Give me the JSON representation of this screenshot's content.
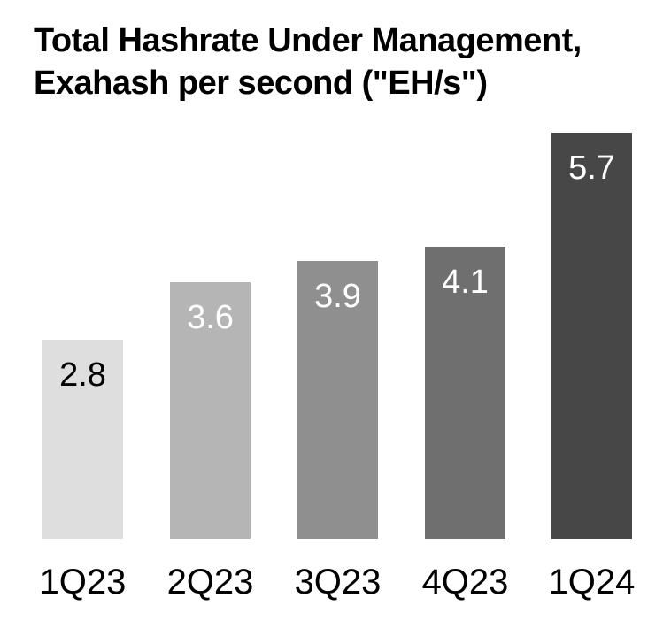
{
  "header": {
    "title_lines": [
      "Total Hashrate Under Management,",
      "Exahash per second (\"EH/s\")"
    ]
  },
  "chart_data": {
    "type": "bar",
    "title": "Total Hashrate Under Management, Exahash per second (\"EH/s\")",
    "categories": [
      "1Q23",
      "2Q23",
      "3Q23",
      "4Q23",
      "1Q24"
    ],
    "values": [
      2.8,
      3.6,
      3.9,
      4.1,
      5.7
    ],
    "data_labels": [
      "2.8",
      "3.6",
      "3.9",
      "4.1",
      "5.7"
    ],
    "unit": "EH/s",
    "xlabel": "",
    "ylabel": "",
    "ylim": [
      0,
      6
    ],
    "grid": false,
    "legend": null,
    "background": "#ffffff",
    "bar_colors": [
      "#dedede",
      "#b5b5b5",
      "#8f8f8f",
      "#6f6f6f",
      "#474747"
    ],
    "value_label_colors": [
      "#000000",
      "#ffffff",
      "#ffffff",
      "#ffffff",
      "#ffffff"
    ],
    "axis_label_color": "#000000"
  }
}
